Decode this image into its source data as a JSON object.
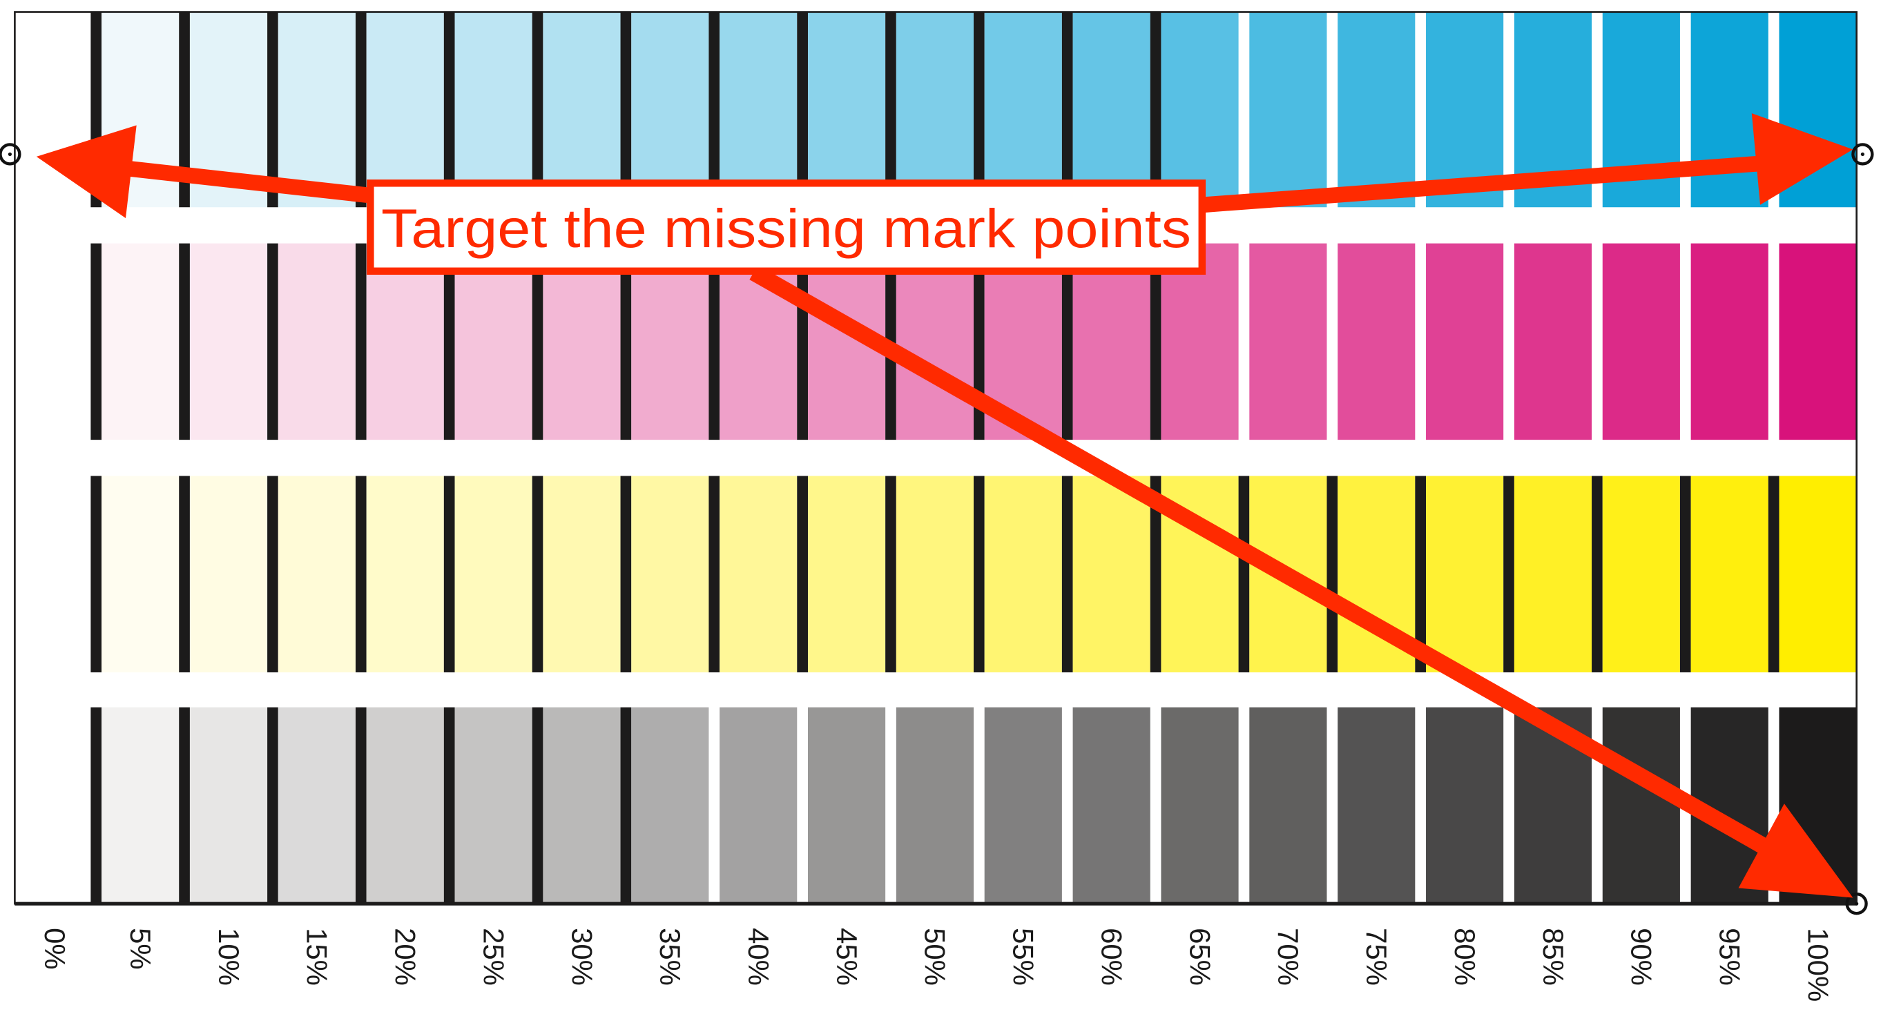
{
  "annotation": {
    "text": "Target the missing mark points",
    "color": "#ff2a00"
  },
  "swatch_chart": {
    "labels": [
      "0%",
      "5%",
      "10%",
      "15%",
      "20%",
      "25%",
      "30%",
      "35%",
      "40%",
      "45%",
      "50%",
      "55%",
      "60%",
      "65%",
      "70%",
      "75%",
      "80%",
      "85%",
      "90%",
      "95%",
      "100%"
    ],
    "values": [
      0,
      5,
      10,
      15,
      20,
      25,
      30,
      35,
      40,
      45,
      50,
      55,
      60,
      65,
      70,
      75,
      80,
      85,
      90,
      95,
      100
    ],
    "rows": [
      {
        "light_color": "#f0f8fb",
        "full_color": "#00a0d6",
        "black_separators_through": "60%"
      },
      {
        "light_color": "#fdf3f6",
        "full_color": "#d8127b",
        "black_separators_through": "60%"
      },
      {
        "light_color": "#fffdf0",
        "full_color": "#ffee00",
        "black_separators_through": "95%"
      },
      {
        "light_color": "#f2f1f0",
        "full_color": "#1c1b1b",
        "black_separators_through": "30%"
      }
    ],
    "separator_color": "#1c1b1b",
    "mark_points": [
      "top-left",
      "top-right",
      "bottom-right"
    ]
  }
}
